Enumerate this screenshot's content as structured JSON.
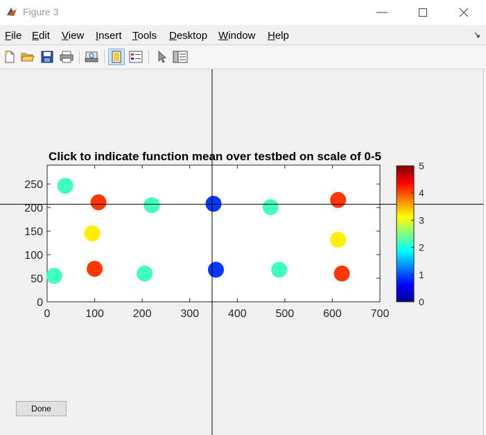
{
  "window": {
    "title": "Figure 3",
    "minimize_icon": "minimize-icon",
    "maximize_icon": "maximize-icon",
    "close_icon": "close-icon"
  },
  "menu": [
    "File",
    "Edit",
    "View",
    "Insert",
    "Tools",
    "Desktop",
    "Window",
    "Help"
  ],
  "toolbar_icons": [
    "new-figure-icon",
    "open-file-icon",
    "save-icon",
    "print-icon",
    "print-preview-icon",
    "dock-figure-icon",
    "insert-legend-icon",
    "select-arrow-icon",
    "property-editor-icon"
  ],
  "chart_data": {
    "type": "scatter",
    "title": "Click to indicate function mean over testbed on scale of 0-5",
    "xlabel": "",
    "ylabel": "",
    "xlim": [
      0,
      700
    ],
    "ylim": [
      0,
      290
    ],
    "xticks": [
      0,
      100,
      200,
      300,
      400,
      500,
      600,
      700
    ],
    "yticks": [
      0,
      50,
      100,
      150,
      200,
      250
    ],
    "colormap": "jet",
    "colorbar": {
      "range": [
        0,
        5
      ],
      "ticks": [
        0,
        1,
        2,
        3,
        4,
        5
      ],
      "location": "right"
    },
    "crosshair": {
      "x": 347,
      "y": 207
    },
    "points": [
      {
        "x": 38,
        "y": 246,
        "c": 2.2
      },
      {
        "x": 108,
        "y": 211,
        "c": 4.1
      },
      {
        "x": 220,
        "y": 205,
        "c": 2.2
      },
      {
        "x": 350,
        "y": 208,
        "c": 0.9
      },
      {
        "x": 470,
        "y": 201,
        "c": 2.2
      },
      {
        "x": 612,
        "y": 216,
        "c": 4.1
      },
      {
        "x": 95,
        "y": 145,
        "c": 3.2
      },
      {
        "x": 612,
        "y": 132,
        "c": 3.2
      },
      {
        "x": 15,
        "y": 55,
        "c": 2.2
      },
      {
        "x": 100,
        "y": 70,
        "c": 4.1
      },
      {
        "x": 205,
        "y": 60,
        "c": 2.2
      },
      {
        "x": 355,
        "y": 68,
        "c": 0.9
      },
      {
        "x": 488,
        "y": 68,
        "c": 2.2
      },
      {
        "x": 620,
        "y": 60,
        "c": 4.1
      }
    ]
  },
  "done_label": "Done"
}
